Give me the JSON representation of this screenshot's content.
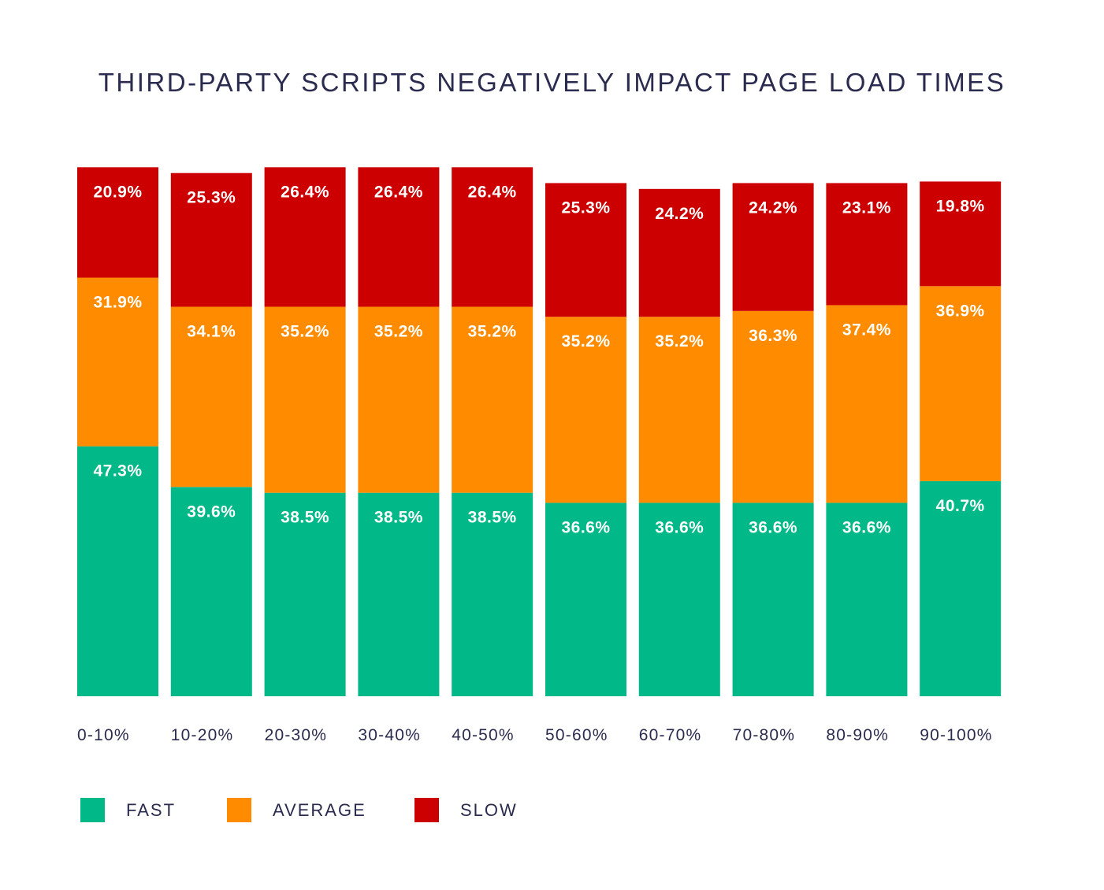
{
  "colors": {
    "fast": "#00b888",
    "average": "#ff8c00",
    "slow": "#cc0000",
    "text": "#2a2b4e",
    "label": "#ffffff"
  },
  "legend": [
    {
      "key": "fast",
      "label": "FAST"
    },
    {
      "key": "average",
      "label": "AVERAGE"
    },
    {
      "key": "slow",
      "label": "SLOW"
    }
  ],
  "chart_data": {
    "type": "bar",
    "stacked": true,
    "title": "THIRD-PARTY SCRIPTS NEGATIVELY IMPACT PAGE LOAD TIMES",
    "xlabel": "",
    "ylabel": "",
    "ylim": [
      0,
      100
    ],
    "legend_position": "bottom-left",
    "grid": false,
    "categories": [
      "0-10%",
      "10-20%",
      "20-30%",
      "30-40%",
      "40-50%",
      "50-60%",
      "60-70%",
      "70-80%",
      "80-90%",
      "90-100%"
    ],
    "series": [
      {
        "name": "FAST",
        "key": "fast",
        "values": [
          47.3,
          39.6,
          38.5,
          38.5,
          38.5,
          36.6,
          36.6,
          36.6,
          36.6,
          40.7
        ],
        "labels": [
          "47.3%",
          "39.6%",
          "38.5%",
          "38.5%",
          "38.5%",
          "36.6%",
          "36.6%",
          "36.6%",
          "36.6%",
          "40.7%"
        ]
      },
      {
        "name": "AVERAGE",
        "key": "average",
        "values": [
          31.9,
          34.1,
          35.2,
          35.2,
          35.2,
          35.2,
          35.2,
          36.3,
          37.4,
          36.9
        ],
        "labels": [
          "31.9%",
          "34.1%",
          "35.2%",
          "35.2%",
          "35.2%",
          "35.2%",
          "35.2%",
          "36.3%",
          "37.4%",
          "36.9%"
        ]
      },
      {
        "name": "SLOW",
        "key": "slow",
        "values": [
          20.9,
          25.3,
          26.4,
          26.4,
          26.4,
          25.3,
          24.2,
          24.2,
          23.1,
          19.8
        ],
        "labels": [
          "20.9%",
          "25.3%",
          "26.4%",
          "26.4%",
          "26.4%",
          "25.3%",
          "24.2%",
          "24.2%",
          "23.1%",
          "19.8%"
        ]
      }
    ]
  }
}
